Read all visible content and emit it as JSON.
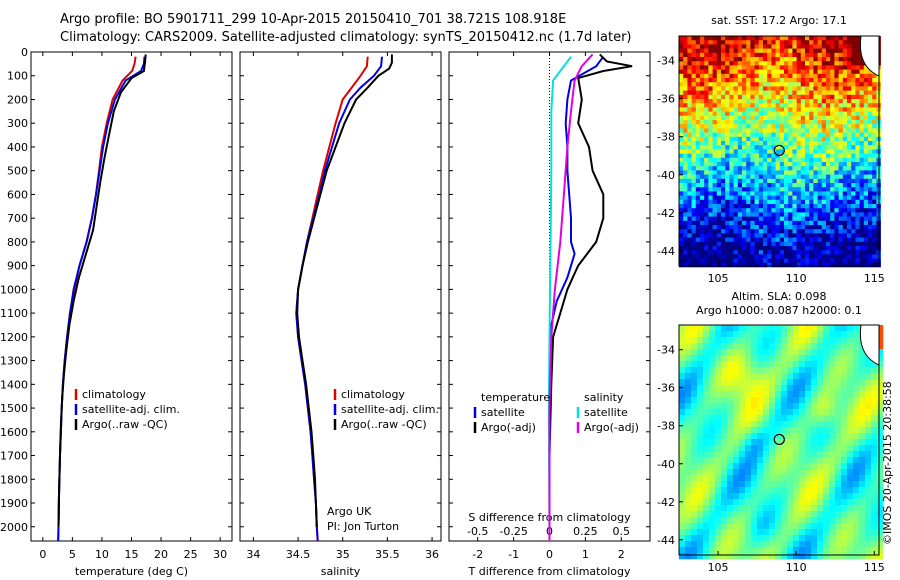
{
  "header": {
    "line1": "Argo profile: BO 5901711_299 10-Apr-2015 20150410_701 38.721S 108.918E",
    "line2": "Climatology: CARS2009. Satellite-adjusted climatology: synTS_20150412.nc (1.7d later)"
  },
  "credit": "©IMOS 20-Apr-2015 20:38:58",
  "colors": {
    "clim": "#e00000",
    "sat": "#0000e0",
    "argo": "#000000",
    "sal_sat": "#00e0e0",
    "sal_argo": "#e000e0"
  },
  "depth_axis": {
    "ticks": [
      0,
      100,
      200,
      300,
      400,
      500,
      600,
      700,
      800,
      900,
      1000,
      1100,
      1200,
      1300,
      1400,
      1500,
      1600,
      1700,
      1800,
      1900,
      2000
    ],
    "ylim": [
      0,
      2060
    ]
  },
  "chart_data": [
    {
      "type": "line",
      "id": "temperature",
      "xlabel": "temperature (deg C)",
      "xticks": [
        0,
        5,
        10,
        15,
        20,
        25,
        30
      ],
      "xlim": [
        -2,
        32
      ],
      "legend": [
        "climatology",
        "satellite-adj. clim.",
        "Argo(..raw -QC)"
      ],
      "series": [
        {
          "name": "climatology",
          "color": "#e00000",
          "points": [
            [
              15.7,
              20
            ],
            [
              15.5,
              50
            ],
            [
              15.1,
              80
            ],
            [
              13.5,
              120
            ],
            [
              11.8,
              200
            ],
            [
              10.8,
              300
            ],
            [
              10,
              400
            ],
            [
              9.5,
              500
            ],
            [
              9,
              600
            ],
            [
              8.3,
              700
            ],
            [
              7.4,
              800
            ],
            [
              6.2,
              900
            ],
            [
              5.3,
              1000
            ],
            [
              4.6,
              1100
            ],
            [
              4.1,
              1200
            ],
            [
              3.7,
              1300
            ],
            [
              3.4,
              1400
            ],
            [
              3.2,
              1500
            ],
            [
              3.05,
              1600
            ],
            [
              2.9,
              1700
            ],
            [
              2.8,
              1800
            ],
            [
              2.7,
              1900
            ],
            [
              2.65,
              2000
            ],
            [
              2.6,
              2060
            ]
          ]
        },
        {
          "name": "satellite-adj. clim.",
          "color": "#0000e0",
          "points": [
            [
              17.2,
              20
            ],
            [
              17.1,
              50
            ],
            [
              16.6,
              80
            ],
            [
              14,
              120
            ],
            [
              12.2,
              200
            ],
            [
              11,
              300
            ],
            [
              10.2,
              400
            ],
            [
              9.6,
              500
            ],
            [
              9,
              600
            ],
            [
              8.3,
              700
            ],
            [
              7.4,
              800
            ],
            [
              6.2,
              900
            ],
            [
              5.2,
              1000
            ],
            [
              4.6,
              1100
            ],
            [
              4.1,
              1200
            ],
            [
              3.7,
              1300
            ],
            [
              3.4,
              1400
            ],
            [
              3.2,
              1500
            ],
            [
              3.05,
              1600
            ],
            [
              2.9,
              1700
            ],
            [
              2.8,
              1800
            ],
            [
              2.7,
              1900
            ],
            [
              2.65,
              2000
            ],
            [
              2.6,
              2060
            ]
          ]
        },
        {
          "name": "Argo(..raw -QC)",
          "color": "#000000",
          "points": [
            [
              17.4,
              10
            ],
            [
              17.3,
              40
            ],
            [
              17.1,
              80
            ],
            [
              15,
              110
            ],
            [
              13.2,
              170
            ],
            [
              12,
              250
            ],
            [
              11.2,
              350
            ],
            [
              10.4,
              450
            ],
            [
              9.7,
              550
            ],
            [
              9.1,
              650
            ],
            [
              8.5,
              750
            ],
            [
              7.3,
              850
            ],
            [
              6.1,
              950
            ],
            [
              5.2,
              1050
            ],
            [
              4.5,
              1150
            ],
            [
              4,
              1250
            ],
            [
              3.6,
              1350
            ],
            [
              3.3,
              1450
            ],
            [
              3.1,
              1550
            ],
            [
              2.95,
              1650
            ],
            [
              2.85,
              1750
            ],
            [
              2.75,
              1850
            ],
            [
              2.7,
              1950
            ],
            [
              2.65,
              2000
            ]
          ]
        }
      ]
    },
    {
      "type": "line",
      "id": "salinity",
      "xlabel": "salinity",
      "xticks": [
        34,
        34.5,
        35,
        35.5,
        36
      ],
      "xlim": [
        33.85,
        36.1
      ],
      "legend": [
        "climatology",
        "satellite-adj. clim.",
        "Argo(..raw -QC)"
      ],
      "notes": [
        "Argo UK",
        "PI: Jon Turton"
      ],
      "series": [
        {
          "name": "climatology",
          "color": "#e00000",
          "points": [
            [
              35.28,
              20
            ],
            [
              35.27,
              60
            ],
            [
              35.2,
              100
            ],
            [
              35.1,
              150
            ],
            [
              35,
              200
            ],
            [
              34.92,
              300
            ],
            [
              34.85,
              400
            ],
            [
              34.78,
              500
            ],
            [
              34.72,
              600
            ],
            [
              34.66,
              700
            ],
            [
              34.6,
              800
            ],
            [
              34.55,
              900
            ],
            [
              34.5,
              1000
            ],
            [
              34.48,
              1100
            ],
            [
              34.5,
              1200
            ],
            [
              34.54,
              1300
            ],
            [
              34.58,
              1400
            ],
            [
              34.61,
              1500
            ],
            [
              34.64,
              1600
            ],
            [
              34.66,
              1700
            ],
            [
              34.68,
              1800
            ],
            [
              34.7,
              1900
            ],
            [
              34.71,
              2000
            ],
            [
              34.72,
              2060
            ]
          ]
        },
        {
          "name": "satellite-adj. clim.",
          "color": "#0000e0",
          "points": [
            [
              35.44,
              20
            ],
            [
              35.43,
              60
            ],
            [
              35.35,
              100
            ],
            [
              35.2,
              150
            ],
            [
              35.08,
              200
            ],
            [
              34.96,
              300
            ],
            [
              34.88,
              400
            ],
            [
              34.8,
              500
            ],
            [
              34.74,
              600
            ],
            [
              34.67,
              700
            ],
            [
              34.6,
              800
            ],
            [
              34.55,
              900
            ],
            [
              34.5,
              1000
            ],
            [
              34.48,
              1100
            ],
            [
              34.5,
              1200
            ],
            [
              34.54,
              1300
            ],
            [
              34.58,
              1400
            ],
            [
              34.61,
              1500
            ],
            [
              34.64,
              1600
            ],
            [
              34.66,
              1700
            ],
            [
              34.68,
              1800
            ],
            [
              34.7,
              1900
            ],
            [
              34.71,
              2000
            ],
            [
              34.72,
              2060
            ]
          ]
        },
        {
          "name": "Argo(..raw -QC)",
          "color": "#000000",
          "points": [
            [
              35.55,
              10
            ],
            [
              35.55,
              45
            ],
            [
              35.52,
              70
            ],
            [
              35.4,
              100
            ],
            [
              35.28,
              150
            ],
            [
              35.15,
              200
            ],
            [
              35.02,
              300
            ],
            [
              34.92,
              400
            ],
            [
              34.82,
              500
            ],
            [
              34.75,
              600
            ],
            [
              34.68,
              700
            ],
            [
              34.61,
              800
            ],
            [
              34.55,
              900
            ],
            [
              34.5,
              1000
            ],
            [
              34.49,
              1100
            ],
            [
              34.51,
              1200
            ],
            [
              34.55,
              1300
            ],
            [
              34.59,
              1400
            ],
            [
              34.62,
              1500
            ],
            [
              34.65,
              1600
            ],
            [
              34.67,
              1700
            ],
            [
              34.69,
              1800
            ],
            [
              34.7,
              1900
            ],
            [
              34.71,
              2000
            ]
          ]
        }
      ]
    },
    {
      "type": "line",
      "id": "difference",
      "xlabel": "T difference from climatology",
      "xlabel2": "S difference from climatology",
      "xticks": [
        -2,
        -1,
        0,
        1,
        2
      ],
      "xlim": [
        -2.8,
        2.8
      ],
      "sticks": [
        -0.5,
        -0.25,
        0,
        0.25,
        0.5
      ],
      "legend_t": {
        "head": "temperature",
        "items": [
          "satellite",
          "Argo(-adj)"
        ]
      },
      "legend_s": {
        "head": "salinity",
        "items": [
          "satellite",
          "Argo(-adj)"
        ]
      },
      "series": [
        {
          "name": "T satellite",
          "color": "#0000e0",
          "points": [
            [
              1.5,
              20
            ],
            [
              1.3,
              60
            ],
            [
              0.6,
              120
            ],
            [
              0.5,
              200
            ],
            [
              0.45,
              300
            ],
            [
              0.5,
              400
            ],
            [
              0.5,
              500
            ],
            [
              0.55,
              600
            ],
            [
              0.6,
              700
            ],
            [
              0.6,
              800
            ],
            [
              0.7,
              850
            ],
            [
              0.5,
              950
            ],
            [
              0.2,
              1050
            ],
            [
              0.05,
              1150
            ],
            [
              0.02,
              1300
            ],
            [
              0,
              1500
            ],
            [
              0,
              2060
            ]
          ]
        },
        {
          "name": "T Argo(-adj)",
          "color": "#000000",
          "points": [
            [
              1.4,
              10
            ],
            [
              1.6,
              40
            ],
            [
              2.3,
              60
            ],
            [
              1.5,
              80
            ],
            [
              0.8,
              110
            ],
            [
              0.9,
              200
            ],
            [
              0.8,
              300
            ],
            [
              1.1,
              400
            ],
            [
              1.2,
              500
            ],
            [
              1.5,
              600
            ],
            [
              1.5,
              700
            ],
            [
              1.3,
              800
            ],
            [
              0.8,
              900
            ],
            [
              0.5,
              1000
            ],
            [
              0.3,
              1100
            ],
            [
              0.1,
              1200
            ],
            [
              0.05,
              1400
            ],
            [
              0,
              1700
            ],
            [
              0,
              2060
            ]
          ]
        },
        {
          "name": "S satellite",
          "color": "#00e0e0",
          "points": [
            [
              0.6,
              20
            ],
            [
              0.4,
              60
            ],
            [
              0.1,
              120
            ],
            [
              0.05,
              250
            ],
            [
              0.05,
              500
            ],
            [
              0.03,
              800
            ],
            [
              0,
              1200
            ],
            [
              -0.02,
              1500
            ],
            [
              0,
              2060
            ]
          ]
        },
        {
          "name": "S Argo(-adj)",
          "color": "#e000e0",
          "points": [
            [
              1.2,
              10
            ],
            [
              0.9,
              60
            ],
            [
              0.7,
              120
            ],
            [
              0.6,
              250
            ],
            [
              0.5,
              400
            ],
            [
              0.4,
              600
            ],
            [
              0.3,
              800
            ],
            [
              0.15,
              1000
            ],
            [
              0.05,
              1200
            ],
            [
              0,
              1500
            ],
            [
              0,
              2060
            ]
          ]
        }
      ]
    },
    {
      "type": "heatmap",
      "id": "sst_map",
      "title": "sat. SST: 17.2 Argo: 17.1",
      "xticks": [
        105,
        110,
        115
      ],
      "yticks": [
        -34,
        -36,
        -38,
        -40,
        -42,
        -44
      ],
      "xlim": [
        102.5,
        115.3
      ],
      "ylim": [
        -44.8,
        -32.7
      ],
      "float_marker": [
        108.918,
        -38.721
      ]
    },
    {
      "type": "heatmap",
      "id": "sla_map",
      "title": "Altim. SLA: 0.098",
      "subtitle": "Argo h1000: 0.087 h2000: 0.1",
      "xticks": [
        105,
        110,
        115
      ],
      "yticks": [
        -34,
        -36,
        -38,
        -40,
        -42,
        -44
      ],
      "xlim": [
        102.5,
        115.3
      ],
      "ylim": [
        -44.8,
        -32.7
      ],
      "float_marker": [
        108.918,
        -38.721
      ]
    }
  ]
}
